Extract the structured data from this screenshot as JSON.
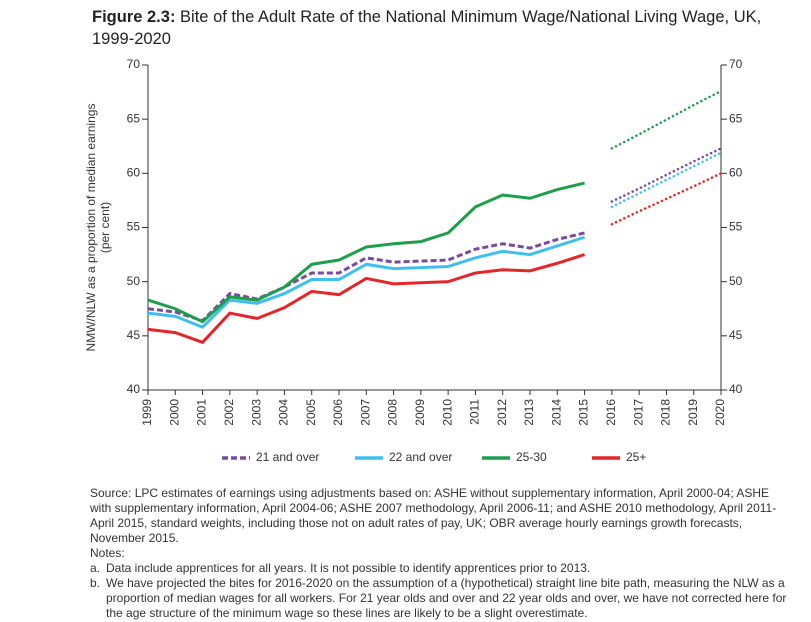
{
  "chart_data": {
    "type": "line",
    "figure_label": "Figure 2.3",
    "title": "Bite of the Adult Rate of the National Minimum Wage/National Living Wage, UK, 1999-2020",
    "ylabel": [
      "NMW/NLW as a proportion of median earnings",
      "(per cent)"
    ],
    "x": [
      1999,
      2000,
      2001,
      2002,
      2003,
      2004,
      2005,
      2006,
      2007,
      2008,
      2009,
      2010,
      2011,
      2012,
      2013,
      2014,
      2015,
      2016,
      2017,
      2018,
      2019,
      2020
    ],
    "xlim": [
      1999,
      2020
    ],
    "xticks": [
      1999,
      2000,
      2001,
      2002,
      2003,
      2004,
      2005,
      2006,
      2007,
      2008,
      2009,
      2010,
      2011,
      2012,
      2013,
      2014,
      2015,
      2016,
      2017,
      2018,
      2019,
      2020
    ],
    "ylim": [
      40,
      70
    ],
    "yticks": [
      40,
      45,
      50,
      55,
      60,
      65,
      70
    ],
    "right_axis": true,
    "legend": "bottom",
    "series": [
      {
        "name": "21 and over",
        "color": "#7b4a9e",
        "style": "dashed",
        "values": [
          47.5,
          47.2,
          46.4,
          48.9,
          48.4,
          49.5,
          50.8,
          50.8,
          52.2,
          51.8,
          51.9,
          52.0,
          53.0,
          53.5,
          53.1,
          53.9,
          54.5,
          null,
          null,
          null,
          null,
          null
        ],
        "projection": [
          null,
          null,
          null,
          null,
          null,
          null,
          null,
          null,
          null,
          null,
          null,
          null,
          null,
          null,
          null,
          null,
          null,
          57.4,
          58.6,
          59.85,
          61.1,
          62.3
        ]
      },
      {
        "name": "22 and over",
        "color": "#3fbfef",
        "style": "solid",
        "values": [
          47.1,
          46.8,
          45.8,
          48.3,
          48.0,
          48.9,
          50.2,
          50.2,
          51.6,
          51.2,
          51.3,
          51.4,
          52.2,
          52.8,
          52.5,
          53.3,
          54.1,
          null,
          null,
          null,
          null,
          null
        ],
        "projection": [
          null,
          null,
          null,
          null,
          null,
          null,
          null,
          null,
          null,
          null,
          null,
          null,
          null,
          null,
          null,
          null,
          null,
          56.9,
          58.15,
          59.4,
          60.65,
          61.9
        ]
      },
      {
        "name": "25-30",
        "color": "#1e9e4a",
        "style": "solid",
        "values": [
          48.3,
          47.5,
          46.3,
          48.6,
          48.3,
          49.5,
          51.6,
          52.0,
          53.2,
          53.5,
          53.7,
          54.5,
          56.9,
          58.0,
          57.7,
          58.5,
          59.1,
          null,
          null,
          null,
          null,
          null
        ],
        "projection": [
          null,
          null,
          null,
          null,
          null,
          null,
          null,
          null,
          null,
          null,
          null,
          null,
          null,
          null,
          null,
          null,
          null,
          62.3,
          63.6,
          64.95,
          66.3,
          67.6
        ]
      },
      {
        "name": "25+",
        "color": "#e4262b",
        "style": "solid",
        "values": [
          45.6,
          45.3,
          44.4,
          47.1,
          46.6,
          47.6,
          49.1,
          48.8,
          50.3,
          49.8,
          49.9,
          50.0,
          50.8,
          51.1,
          51.0,
          51.7,
          52.5,
          null,
          null,
          null,
          null,
          null
        ],
        "projection": [
          null,
          null,
          null,
          null,
          null,
          null,
          null,
          null,
          null,
          null,
          null,
          null,
          null,
          null,
          null,
          null,
          null,
          55.3,
          56.5,
          57.65,
          58.8,
          60.0
        ]
      }
    ]
  },
  "notes": {
    "source": "Source: LPC estimates of earnings using adjustments based on: ASHE without supplementary information, April 2000-04; ASHE with supplementary information, April 2004-06; ASHE 2007 methodology, April 2006-11; and ASHE 2010 methodology, April 2011-April 2015, standard weights, including those not on adult rates of pay, UK; OBR average hourly earnings growth forecasts, November 2015.",
    "heading": "Notes:",
    "items": [
      {
        "marker": "a.",
        "text": "Data include apprentices for all years. It is not possible to identify apprentices prior to 2013."
      },
      {
        "marker": "b.",
        "text": "We have projected the bites for 2016-2020 on the assumption of a (hypothetical) straight line bite path, measuring the NLW as a proportion of median wages for all workers. For 21 year olds and over and 22 year olds and over, we have not corrected here for the age structure of the minimum wage so these lines are likely to be a slight overestimate."
      }
    ]
  }
}
